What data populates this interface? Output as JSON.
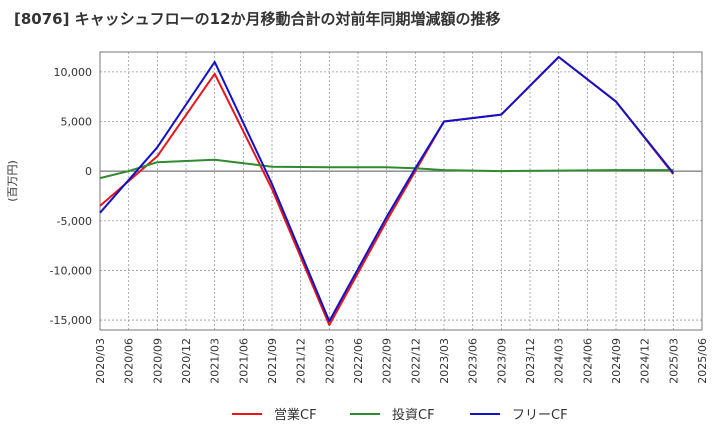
{
  "chart_data": {
    "type": "line",
    "title": "[8076]  キャッシュフローの12か月移動合計の対前年同期増減額の推移",
    "ylabel": "(百万円)",
    "xlabel": "",
    "ylim": [
      -16000,
      12000
    ],
    "yticks": [
      -15000,
      -10000,
      -5000,
      0,
      5000,
      10000
    ],
    "ytick_labels": [
      "-15,000",
      "-10,000",
      "-5,000",
      "0",
      "5,000",
      "10,000"
    ],
    "x_categories": [
      "2020/03",
      "2020/06",
      "2020/09",
      "2020/12",
      "2021/03",
      "2021/06",
      "2021/09",
      "2021/12",
      "2022/03",
      "2022/06",
      "2022/09",
      "2022/12",
      "2023/03",
      "2023/06",
      "2023/09",
      "2023/12",
      "2024/03",
      "2024/06",
      "2024/09",
      "2024/12",
      "2025/03",
      "2025/06"
    ],
    "legend_position": "bottom",
    "series": [
      {
        "name": "営業CF",
        "color": "#e8161b",
        "x": [
          "2020/03",
          "2020/09",
          "2021/03",
          "2021/09",
          "2022/03",
          "2022/09",
          "2022/12",
          "2023/03",
          "2023/09",
          "2024/03",
          "2024/09",
          "2025/03"
        ],
        "values": [
          -3500,
          1500,
          9800,
          -1800,
          -15500,
          -5000,
          0,
          5000,
          5700,
          11500,
          7000,
          -300
        ]
      },
      {
        "name": "投資CF",
        "color": "#2e8b2e",
        "x": [
          "2020/03",
          "2020/06",
          "2020/09",
          "2021/03",
          "2021/09",
          "2022/03",
          "2022/09",
          "2022/12",
          "2023/03",
          "2023/09",
          "2024/03",
          "2024/09",
          "2025/03"
        ],
        "values": [
          -700,
          0,
          900,
          1150,
          450,
          400,
          400,
          300,
          100,
          0,
          50,
          100,
          100
        ]
      },
      {
        "name": "フリーCF",
        "color": "#1212c8",
        "x": [
          "2020/03",
          "2020/09",
          "2021/03",
          "2021/09",
          "2022/03",
          "2022/09",
          "2022/12",
          "2023/03",
          "2023/09",
          "2024/03",
          "2024/09",
          "2025/03"
        ],
        "values": [
          -4200,
          2400,
          11000,
          -1300,
          -15100,
          -4600,
          300,
          5000,
          5700,
          11500,
          7000,
          -200
        ]
      }
    ]
  }
}
